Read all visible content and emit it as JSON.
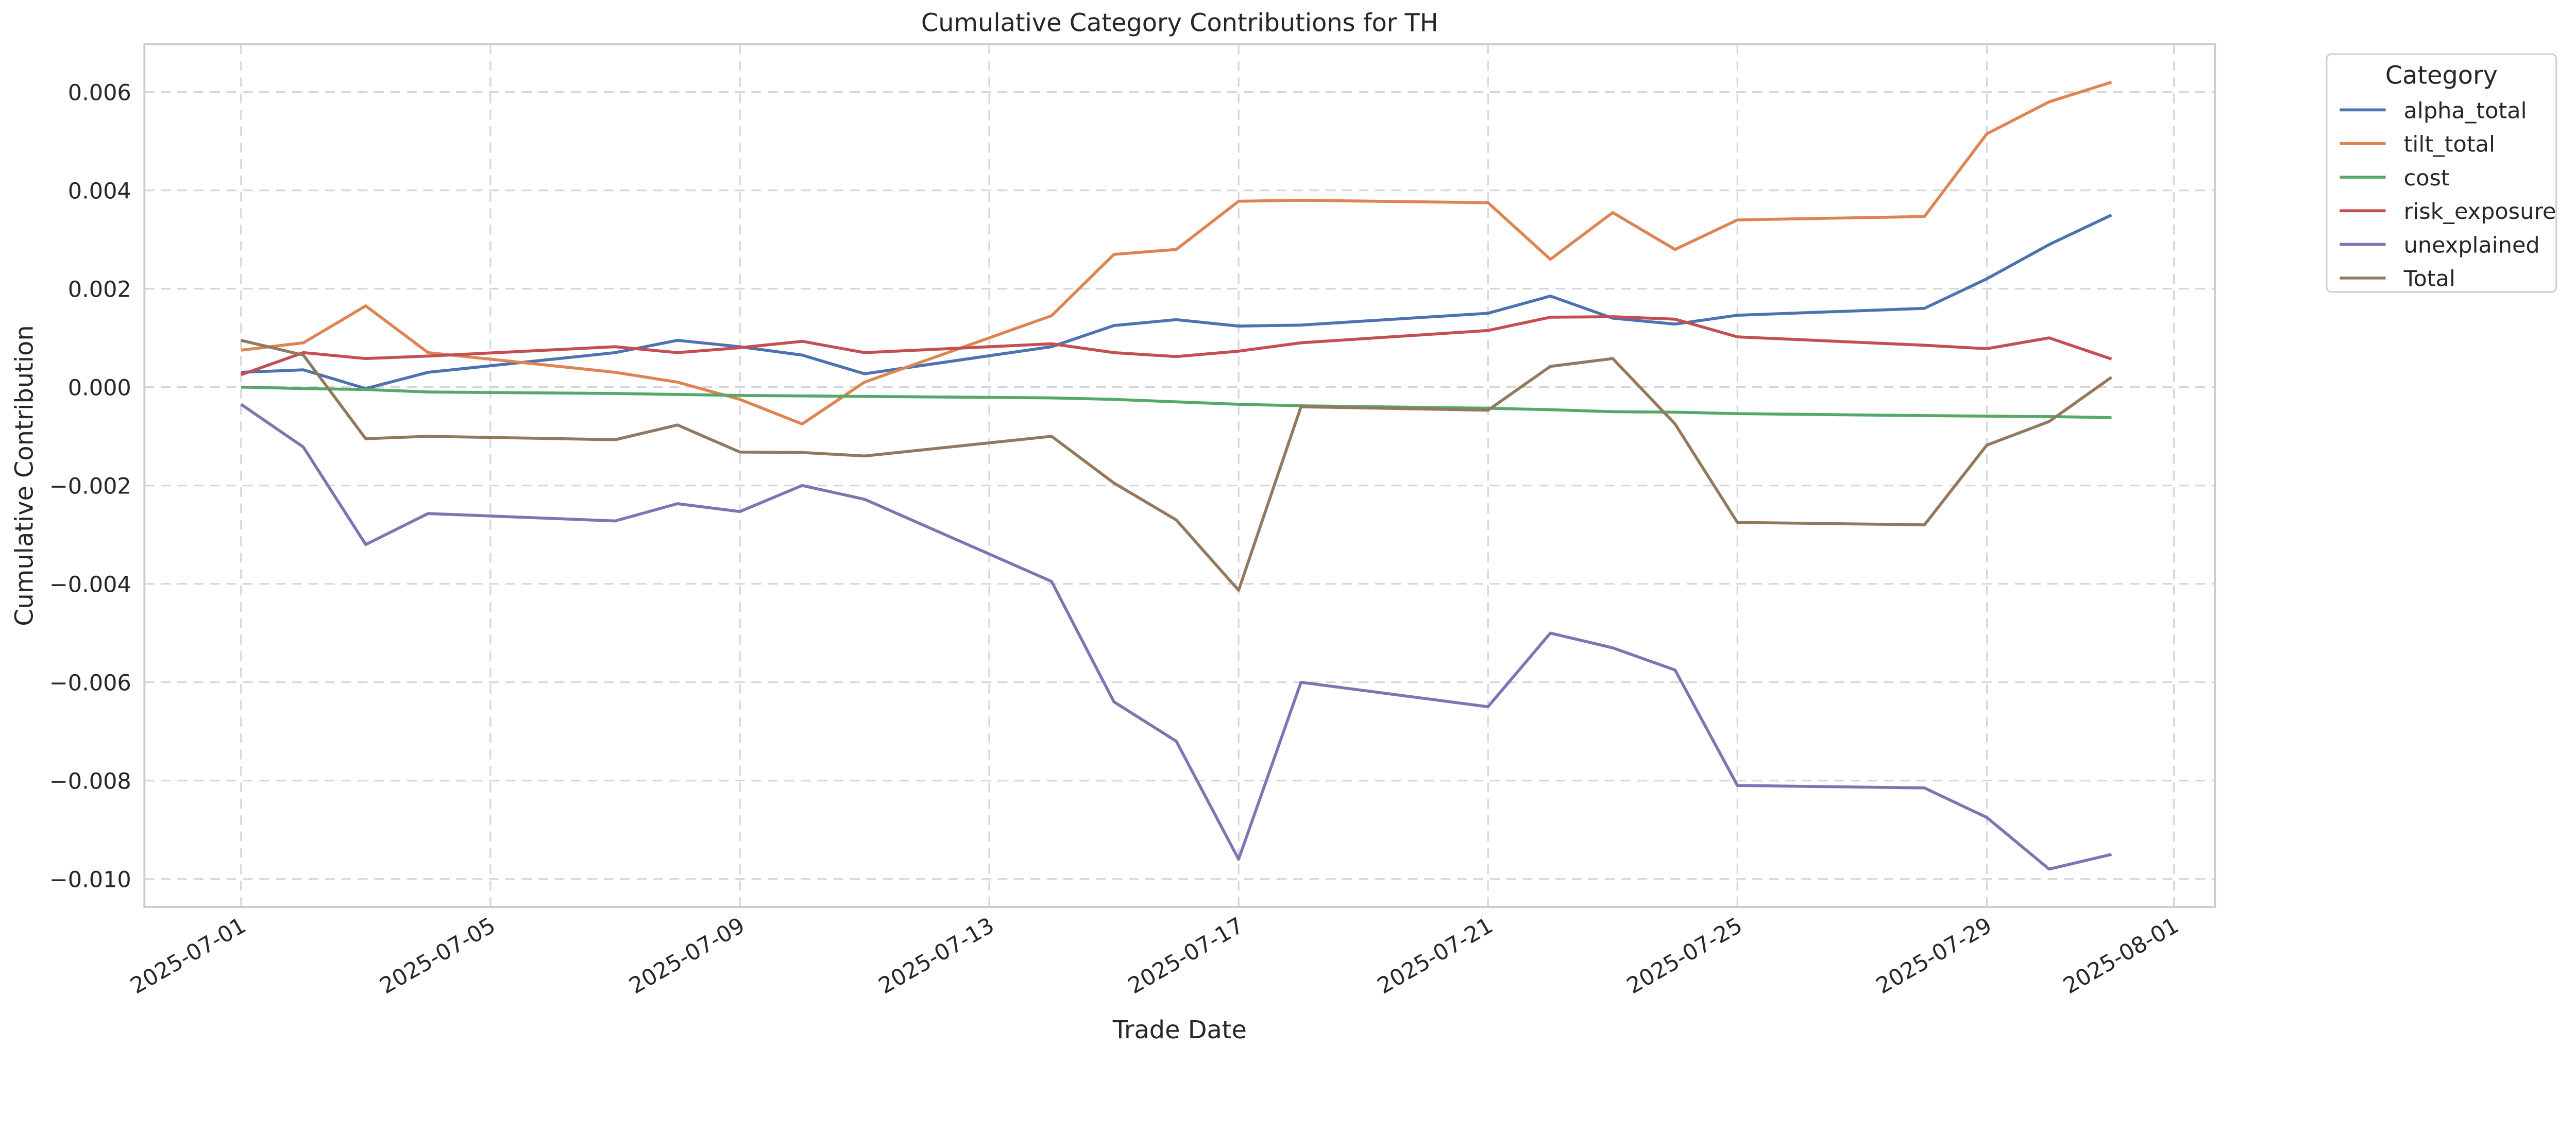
{
  "chart_data": {
    "type": "line",
    "title": "Cumulative Category Contributions for TH",
    "xlabel": "Trade Date",
    "ylabel": "Cumulative Contribution",
    "ylim": [
      -0.01057,
      0.00697
    ],
    "xlim_days_from_start": [
      -1.55,
      31.66
    ],
    "x_start": "2025-07-01",
    "grid": true,
    "legend": {
      "title": "Category",
      "placement": "outside top-right"
    },
    "yticks": [
      -0.01,
      -0.008,
      -0.006,
      -0.004,
      -0.002,
      0.0,
      0.002,
      0.004,
      0.006
    ],
    "ytick_labels": [
      "−0.010",
      "−0.008",
      "−0.006",
      "−0.004",
      "−0.002",
      "0.000",
      "0.002",
      "0.004",
      "0.006"
    ],
    "xticks": [
      "2025-07-01",
      "2025-07-05",
      "2025-07-09",
      "2025-07-13",
      "2025-07-17",
      "2025-07-21",
      "2025-07-25",
      "2025-07-29",
      "2025-08-01"
    ],
    "x": [
      "2025-07-01",
      "2025-07-02",
      "2025-07-03",
      "2025-07-04",
      "2025-07-07",
      "2025-07-08",
      "2025-07-09",
      "2025-07-10",
      "2025-07-11",
      "2025-07-14",
      "2025-07-15",
      "2025-07-16",
      "2025-07-17",
      "2025-07-18",
      "2025-07-21",
      "2025-07-22",
      "2025-07-23",
      "2025-07-24",
      "2025-07-25",
      "2025-07-28",
      "2025-07-29",
      "2025-07-30",
      "2025-07-31"
    ],
    "series": [
      {
        "name": "alpha_total",
        "color": "#4c72b0",
        "values": [
          0.0003,
          0.00035,
          -3e-05,
          0.0003,
          0.0007,
          0.00095,
          0.00082,
          0.00065,
          0.00027,
          0.00082,
          0.00125,
          0.00137,
          0.00124,
          0.00126,
          0.0015,
          0.00185,
          0.0014,
          0.00128,
          0.00146,
          0.0016,
          0.0022,
          0.0029,
          0.0035
        ]
      },
      {
        "name": "tilt_total",
        "color": "#dd8452",
        "values": [
          0.00075,
          0.0009,
          0.00165,
          0.0007,
          0.0003,
          0.0001,
          -0.00025,
          -0.00075,
          0.0001,
          0.00145,
          0.0027,
          0.0028,
          0.00378,
          0.0038,
          0.00375,
          0.0026,
          0.00355,
          0.0028,
          0.0034,
          0.00347,
          0.00515,
          0.0058,
          0.0062
        ]
      },
      {
        "name": "cost",
        "color": "#55a868",
        "values": [
          0.0,
          -3e-05,
          -5e-05,
          -0.0001,
          -0.00013,
          -0.00015,
          -0.00017,
          -0.00018,
          -0.00019,
          -0.00022,
          -0.00025,
          -0.0003,
          -0.00035,
          -0.00038,
          -0.00043,
          -0.00046,
          -0.0005,
          -0.00051,
          -0.00054,
          -0.00058,
          -0.00059,
          -0.0006,
          -0.00062
        ]
      },
      {
        "name": "risk_exposure",
        "color": "#c44e52",
        "values": [
          0.00025,
          0.0007,
          0.00058,
          0.00063,
          0.00082,
          0.0007,
          0.0008,
          0.00093,
          0.0007,
          0.00088,
          0.0007,
          0.00062,
          0.00073,
          0.0009,
          0.00115,
          0.00142,
          0.00143,
          0.00138,
          0.00102,
          0.00085,
          0.00078,
          0.001,
          0.00057
        ]
      },
      {
        "name": "unexplained",
        "color": "#8172b3",
        "values": [
          -0.00035,
          -0.00122,
          -0.0032,
          -0.00257,
          -0.00272,
          -0.00237,
          -0.00253,
          -0.002,
          -0.00228,
          -0.00395,
          -0.0064,
          -0.0072,
          -0.0096,
          -0.006,
          -0.0065,
          -0.005,
          -0.0053,
          -0.00575,
          -0.0081,
          -0.00815,
          -0.00875,
          -0.0098,
          -0.0095
        ]
      },
      {
        "name": "Total",
        "color": "#937860",
        "values": [
          0.00095,
          0.00065,
          -0.00105,
          -0.001,
          -0.00107,
          -0.00077,
          -0.00132,
          -0.00133,
          -0.0014,
          -0.001,
          -0.00195,
          -0.0027,
          -0.00413,
          -0.0004,
          -0.00047,
          0.00042,
          0.00058,
          -0.00075,
          -0.00275,
          -0.0028,
          -0.00118,
          -0.0007,
          0.0002
        ]
      }
    ]
  }
}
